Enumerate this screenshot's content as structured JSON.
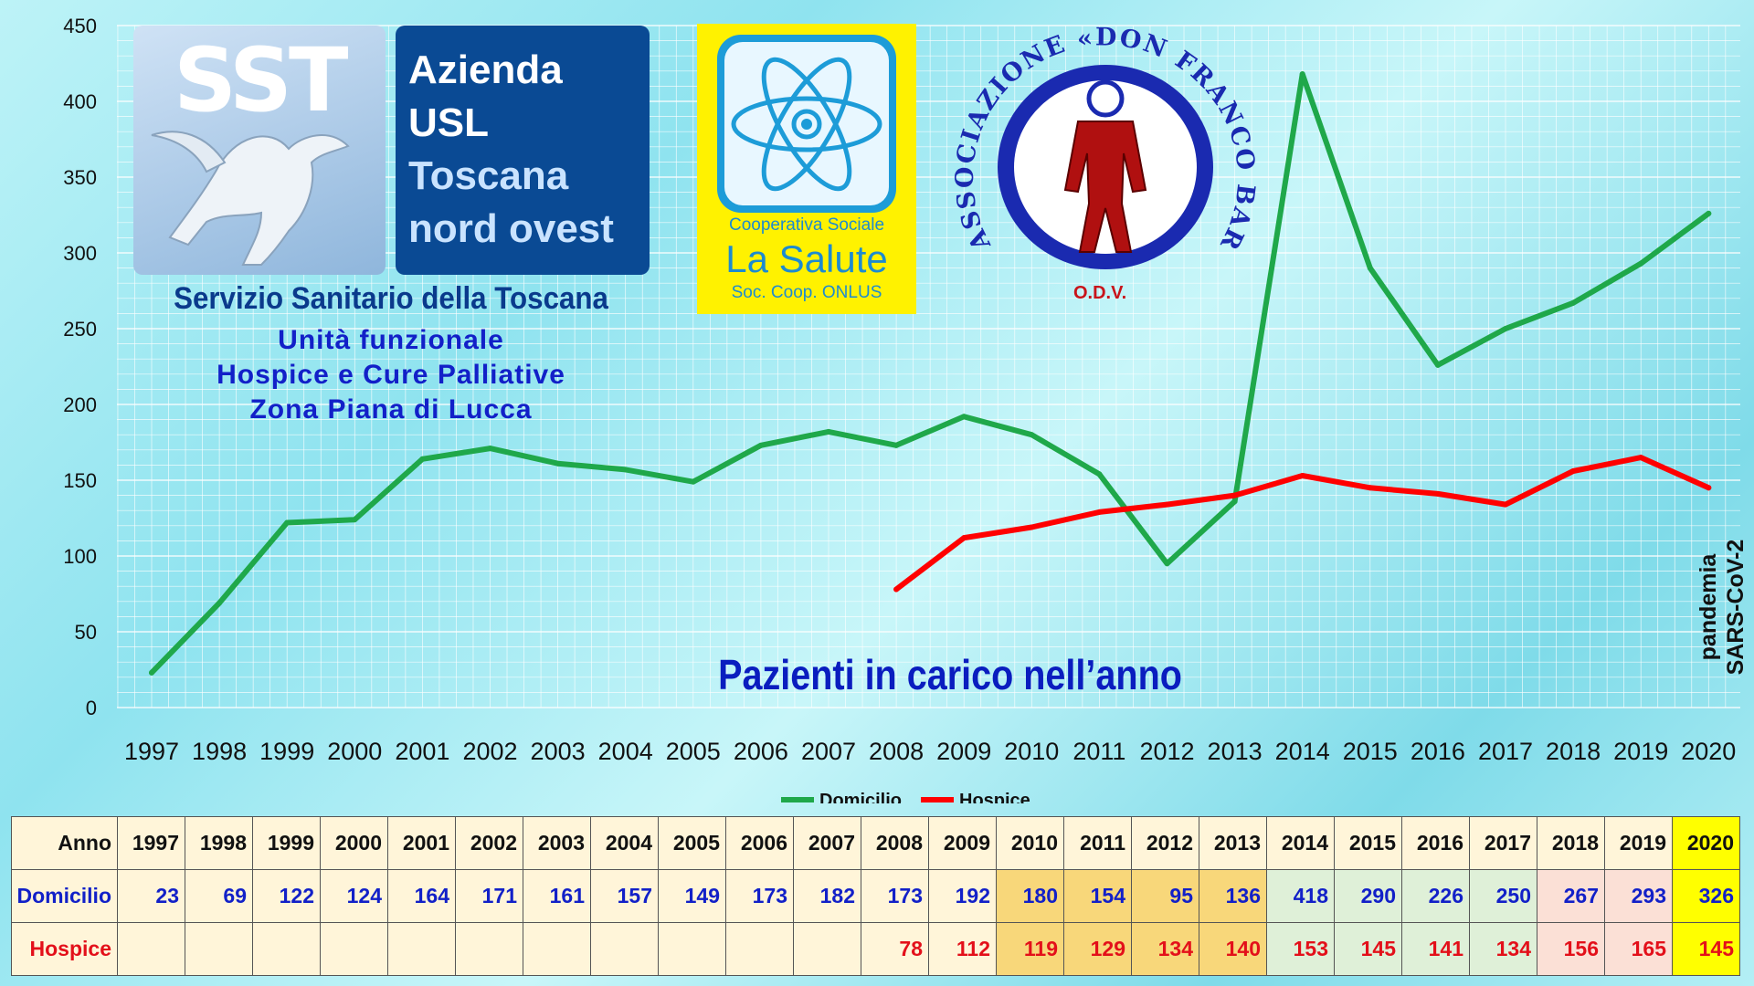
{
  "chart_data": {
    "type": "line",
    "title": "Pazienti in carico nell’anno",
    "categories": [
      "1997",
      "1998",
      "1999",
      "2000",
      "2001",
      "2002",
      "2003",
      "2004",
      "2005",
      "2006",
      "2007",
      "2008",
      "2009",
      "2010",
      "2011",
      "2012",
      "2013",
      "2014",
      "2015",
      "2016",
      "2017",
      "2018",
      "2019",
      "2020"
    ],
    "series": [
      {
        "name": "Domicilio",
        "color": "#1fa84a",
        "values": [
          23,
          69,
          122,
          124,
          164,
          171,
          161,
          157,
          149,
          173,
          182,
          173,
          192,
          180,
          154,
          95,
          136,
          418,
          290,
          226,
          250,
          267,
          293,
          326
        ]
      },
      {
        "name": "Hospice",
        "color": "#ff0000",
        "values": [
          null,
          null,
          null,
          null,
          null,
          null,
          null,
          null,
          null,
          null,
          null,
          78,
          112,
          119,
          129,
          134,
          140,
          153,
          145,
          141,
          134,
          156,
          165,
          145
        ]
      }
    ],
    "ylim": [
      0,
      450
    ],
    "yticks": [
      0,
      50,
      100,
      150,
      200,
      250,
      300,
      350,
      400,
      450
    ],
    "grid": true,
    "legend": "bottom",
    "annotation": [
      "pandemia",
      "SARS-CoV-2"
    ]
  },
  "logos": {
    "sst_letters": "SST",
    "usl_lines": [
      "Azienda",
      "USL",
      "Toscana",
      "nord ovest"
    ],
    "sst_caption": "Servizio Sanitario della Toscana",
    "unit_lines": [
      "Unità funzionale",
      "Hospice e Cure Palliative",
      "Zona Piana di Lucca"
    ],
    "salute_lines": [
      "Cooperativa Sociale",
      "La Salute",
      "Soc. Coop. ONLUS"
    ],
    "assoc_text": "ASSOCIAZIONE «DON FRANCO BARONI»",
    "assoc_odv": "O.D.V."
  },
  "table": {
    "header_label": "Anno",
    "row_labels": [
      "Domicilio",
      "Hospice"
    ]
  },
  "colors": {
    "domicilio": "#1fa84a",
    "hospice": "#ff0000",
    "title": "#0a1dbf"
  }
}
